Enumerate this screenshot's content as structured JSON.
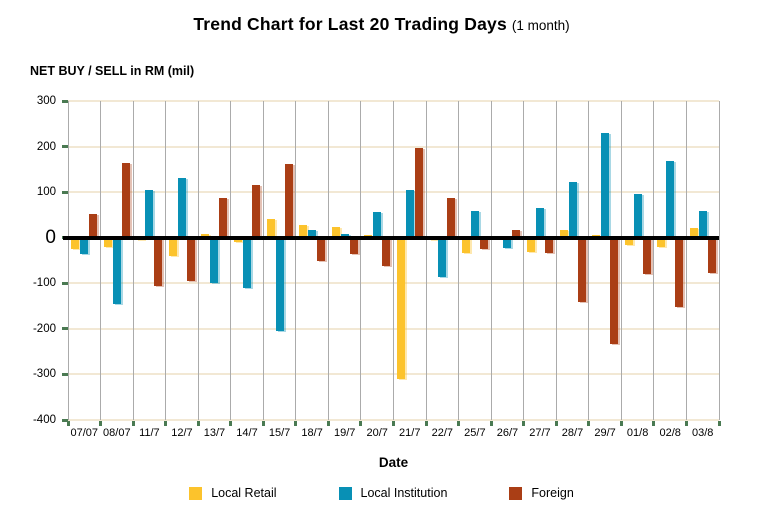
{
  "title": "Trend Chart for Last 20 Trading Days",
  "subtitle": "(1 month)",
  "y_axis_title": "NET BUY / SELL in RM (mil)",
  "x_axis_title": "Date",
  "chart_data": {
    "type": "bar",
    "categories": [
      "07/07",
      "08/07",
      "11/7",
      "12/7",
      "13/7",
      "14/7",
      "15/7",
      "18/7",
      "19/7",
      "20/7",
      "21/7",
      "22/7",
      "25/7",
      "26/7",
      "27/7",
      "28/7",
      "29/7",
      "01/8",
      "02/8",
      "03/8"
    ],
    "series": [
      {
        "name": "Local Retail",
        "color": "#FCC32C",
        "values": [
          -25,
          -20,
          -6,
          -40,
          8,
          -10,
          40,
          28,
          23,
          5,
          -310,
          -5,
          -33,
          0,
          -32,
          18,
          5,
          -15,
          -20,
          22
        ]
      },
      {
        "name": "Local Institution",
        "color": "#0890B5",
        "values": [
          -36,
          -145,
          105,
          130,
          -100,
          -110,
          -205,
          18,
          8,
          56,
          105,
          -87,
          58,
          -23,
          65,
          122,
          230,
          95,
          168,
          58
        ]
      },
      {
        "name": "Foreign",
        "color": "#AA3E15",
        "values": [
          53,
          165,
          -105,
          -95,
          88,
          115,
          162,
          -52,
          -35,
          -63,
          197,
          87,
          -25,
          16,
          -33,
          -140,
          -233,
          -80,
          -152,
          -78
        ]
      }
    ],
    "ylim": [
      -400,
      300
    ],
    "y_ticks": [
      300,
      200,
      100,
      0,
      -100,
      -200,
      -300,
      -400
    ],
    "grid": true,
    "legend_position": "bottom"
  },
  "colors": {
    "h_grid": "#F2E8D4",
    "v_grid": "#ABABAB",
    "zero_line": "#000000",
    "axis_tick": "#4A7A52"
  }
}
